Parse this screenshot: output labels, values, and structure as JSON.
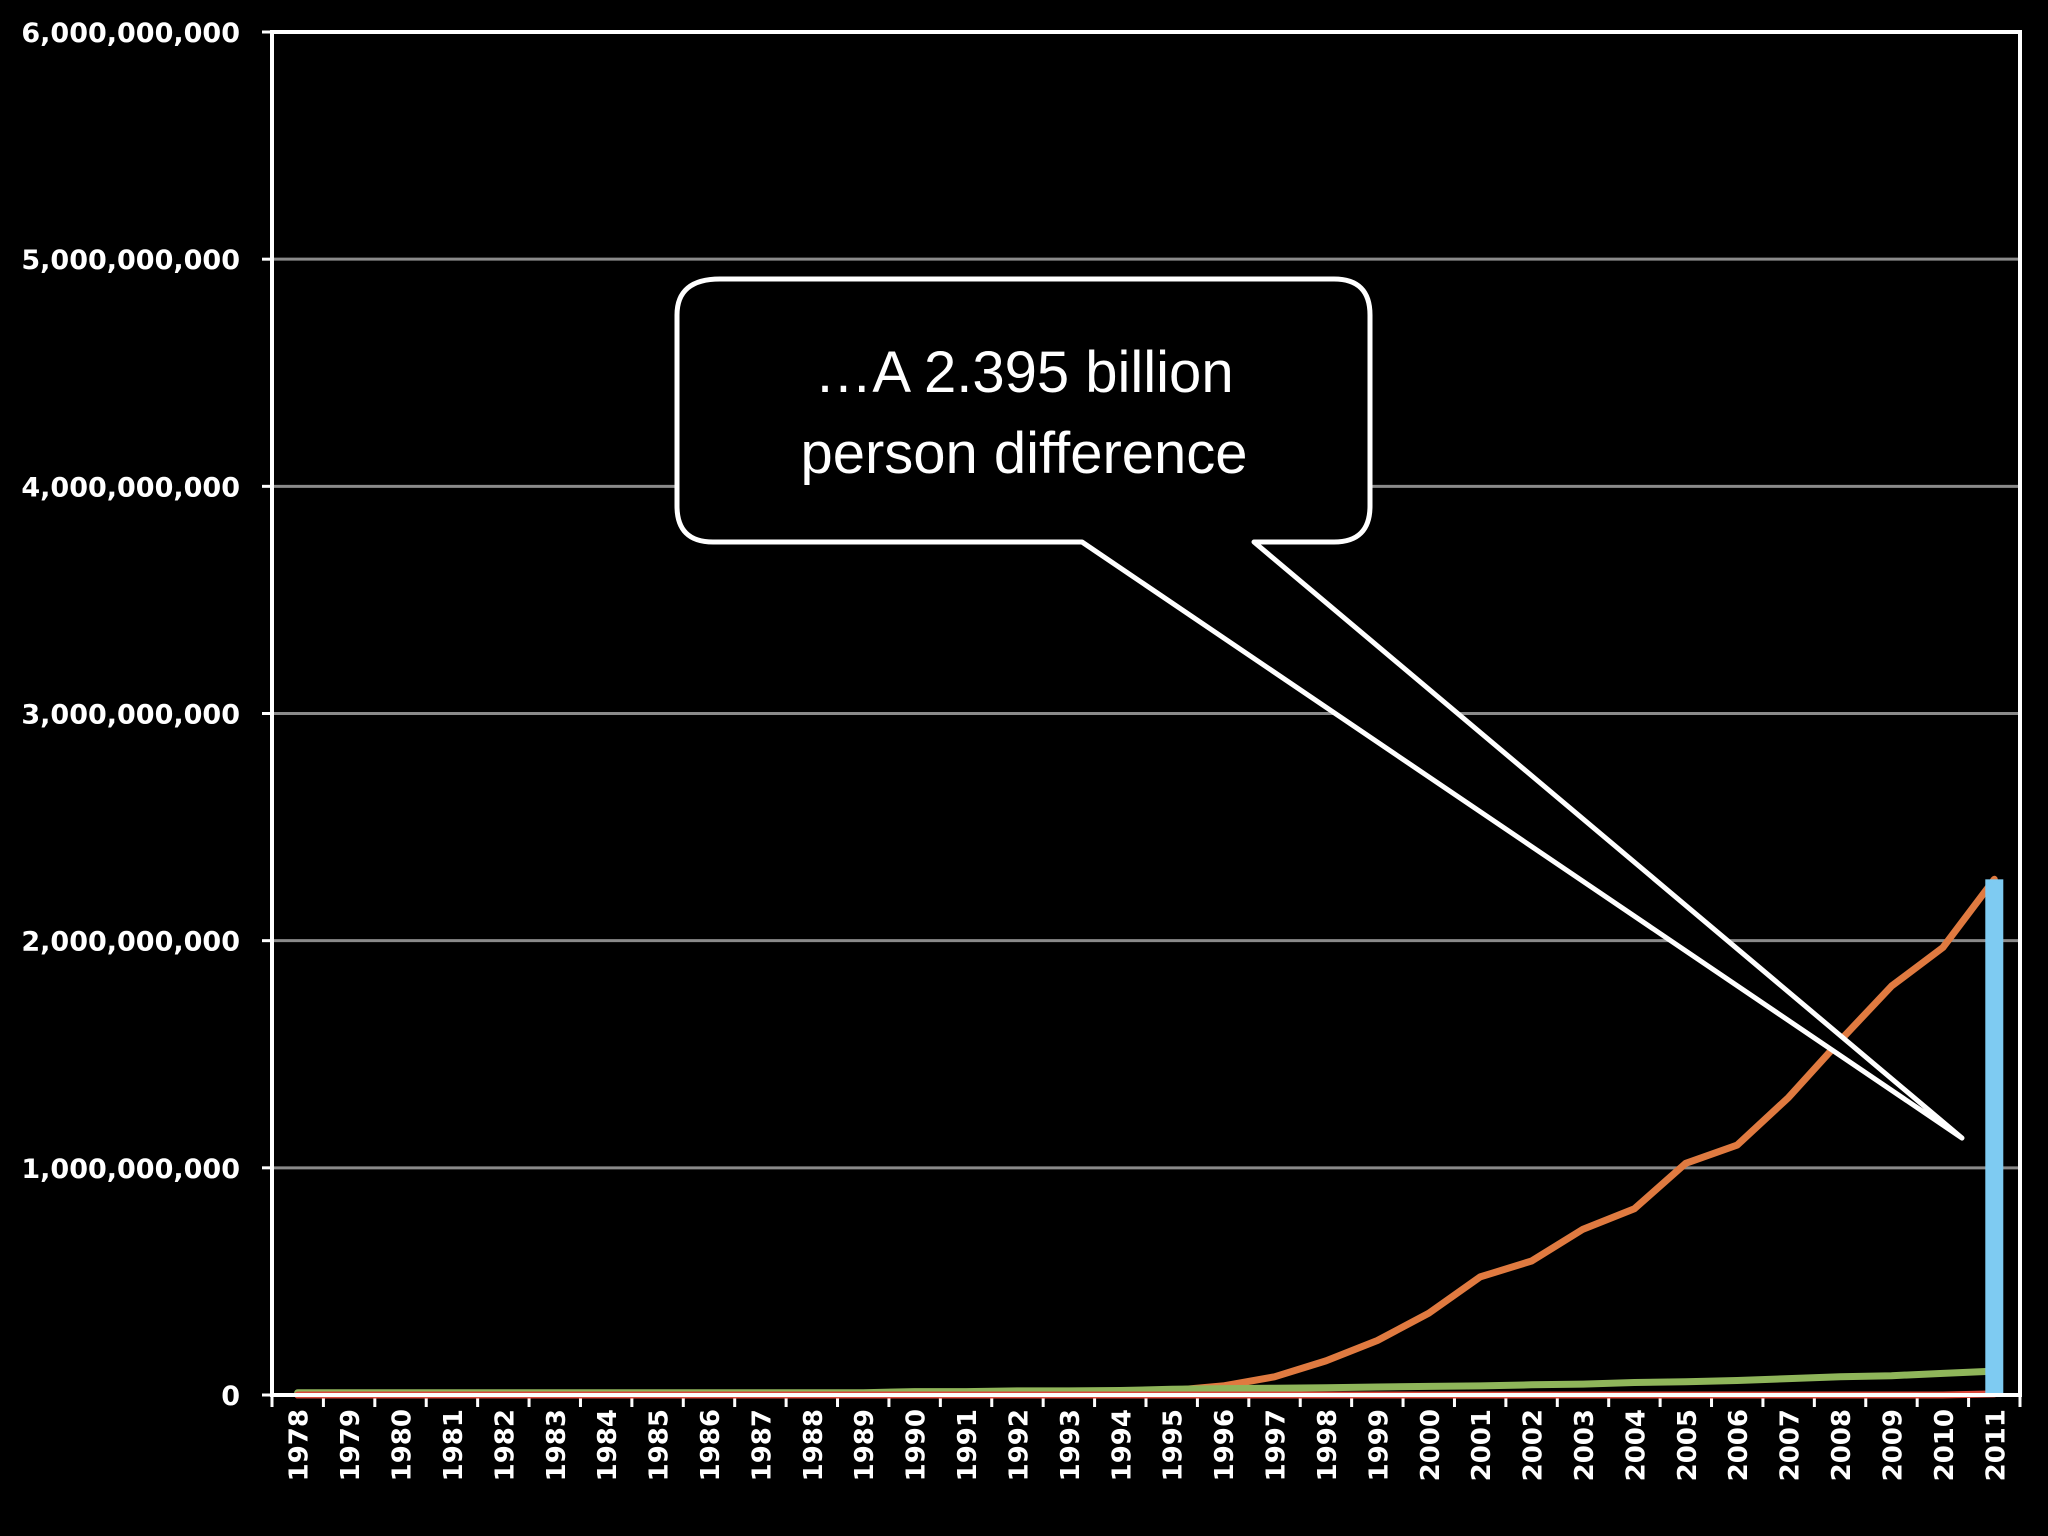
{
  "chart_data": {
    "type": "line",
    "title": "",
    "xlabel": "",
    "ylabel": "",
    "ylim": [
      0,
      6000000000
    ],
    "yticks": [
      "0",
      "1,000,000,000",
      "2,000,000,000",
      "3,000,000,000",
      "4,000,000,000",
      "5,000,000,000",
      "6,000,000,000"
    ],
    "ytick_values": [
      0,
      1000000000,
      2000000000,
      3000000000,
      4000000000,
      5000000000,
      6000000000
    ],
    "grid": true,
    "x": [
      "1978",
      "1979",
      "1980",
      "1981",
      "1982",
      "1983",
      "1984",
      "1985",
      "1986",
      "1987",
      "1988",
      "1989",
      "1990",
      "1991",
      "1992",
      "1993",
      "1994",
      "1995",
      "1996",
      "1997",
      "1998",
      "1999",
      "2000",
      "2001",
      "2002",
      "2003",
      "2004",
      "2005",
      "2006",
      "2007",
      "2008",
      "2009",
      "2010",
      "2011"
    ],
    "series": [
      {
        "color": "#e07a40",
        "values": [
          0,
          0,
          0,
          0,
          0,
          0,
          0,
          0,
          0,
          0,
          0,
          0,
          0,
          0,
          0,
          0,
          0,
          20000000,
          40000000,
          80000000,
          150000000,
          240000000,
          360000000,
          520000000,
          590000000,
          730000000,
          820000000,
          1020000000,
          1100000000,
          1310000000,
          1560000000,
          1800000000,
          1970000000,
          2270000000
        ]
      },
      {
        "color": "#8fb55a",
        "values": [
          10000000,
          10000000,
          10000000,
          10000000,
          10000000,
          10000000,
          10000000,
          10000000,
          10000000,
          10000000,
          10000000,
          10000000,
          15000000,
          15000000,
          18000000,
          18000000,
          20000000,
          25000000,
          28000000,
          30000000,
          32000000,
          35000000,
          38000000,
          40000000,
          45000000,
          48000000,
          55000000,
          58000000,
          64000000,
          72000000,
          80000000,
          85000000,
          95000000,
          105000000
        ]
      },
      {
        "color": "#d9483b",
        "values": [
          0,
          0,
          0,
          0,
          0,
          0,
          0,
          0,
          0,
          0,
          0,
          0,
          0,
          0,
          0,
          0,
          0,
          0,
          0,
          0,
          0,
          0,
          0,
          0,
          0,
          0,
          0,
          0,
          0,
          0,
          0,
          0,
          0,
          5000000
        ]
      }
    ],
    "bar": {
      "color": "#7ecbf2",
      "x": "2011",
      "from": 0,
      "to": 2270000000
    },
    "annotations": [
      {
        "lines": [
          "…A 2.395 billion",
          "person difference"
        ]
      }
    ]
  }
}
